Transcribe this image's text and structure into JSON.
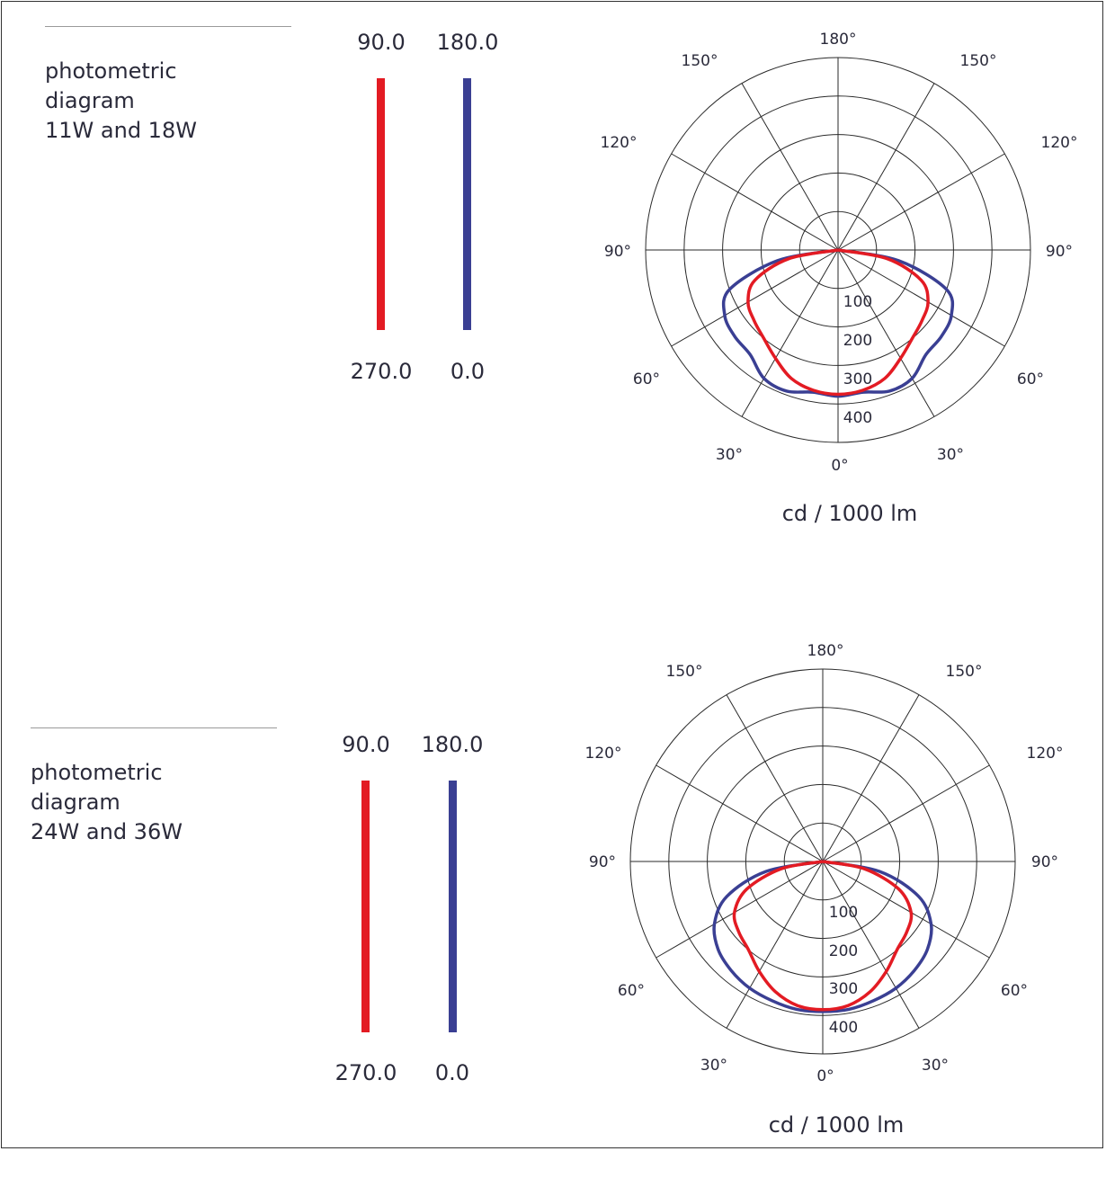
{
  "colors": {
    "red": "#e31b23",
    "blue": "#3a3f93"
  },
  "diagrams": [
    {
      "title_lines": [
        "photometric",
        "diagram",
        "11W and 18W"
      ],
      "legend": {
        "red_top": "90.0",
        "red_bottom": "270.0",
        "blue_top": "180.0",
        "blue_bottom": "0.0"
      },
      "unit_label": "cd / 1000 lm",
      "angle_labels": {
        "a180": "180°",
        "a150l": "150°",
        "a150r": "150°",
        "a120l": "120°",
        "a120r": "120°",
        "a90l": "90°",
        "a90r": "90°",
        "a60l": "60°",
        "a60r": "60°",
        "a30l": "30°",
        "a30r": "30°",
        "a0": "0°"
      },
      "radial_labels": [
        "100",
        "200",
        "300",
        "400"
      ],
      "chart_data": {
        "type": "polar",
        "rmax": 500,
        "radial_ticks": [
          100,
          200,
          300,
          400
        ],
        "angle_ticks": [
          0,
          30,
          60,
          90,
          120,
          150,
          180
        ],
        "series": [
          {
            "name": "0.0",
            "color": "blue",
            "angles": [
              0,
              10,
              20,
              30,
              40,
              50,
              60,
              70,
              80,
              90
            ],
            "values": [
              380,
              375,
              390,
              385,
              355,
              350,
              340,
              300,
              160,
              0
            ]
          },
          {
            "name": "90.0",
            "color": "red",
            "angles": [
              0,
              10,
              20,
              30,
              40,
              50,
              60,
              70,
              80,
              90
            ],
            "values": [
              375,
              370,
              355,
              325,
              300,
              285,
              270,
              230,
              130,
              0
            ]
          }
        ]
      }
    },
    {
      "title_lines": [
        "photometric",
        "diagram",
        "24W and 36W"
      ],
      "legend": {
        "red_top": "90.0",
        "red_bottom": "270.0",
        "blue_top": "180.0",
        "blue_bottom": "0.0"
      },
      "unit_label": "cd / 1000 lm",
      "angle_labels": {
        "a180": "180°",
        "a150l": "150°",
        "a150r": "150°",
        "a120l": "120°",
        "a120r": "120°",
        "a90l": "90°",
        "a90r": "90°",
        "a60l": "60°",
        "a60r": "60°",
        "a30l": "30°",
        "a30r": "30°",
        "a0": "0°"
      },
      "radial_labels": [
        "100",
        "200",
        "300",
        "400"
      ],
      "chart_data": {
        "type": "polar",
        "rmax": 500,
        "radial_ticks": [
          100,
          200,
          300,
          400
        ],
        "angle_ticks": [
          0,
          30,
          60,
          90,
          120,
          150,
          180
        ],
        "series": [
          {
            "name": "0.0",
            "color": "blue",
            "angles": [
              0,
              10,
              20,
              30,
              40,
              50,
              60,
              70,
              80,
              90
            ],
            "values": [
              390,
              390,
              385,
              380,
              370,
              355,
              325,
              265,
              150,
              0
            ]
          },
          {
            "name": "90.0",
            "color": "red",
            "angles": [
              0,
              10,
              20,
              30,
              40,
              50,
              60,
              70,
              80,
              90
            ],
            "values": [
              385,
              380,
              360,
              330,
              300,
              285,
              265,
              210,
              110,
              0
            ]
          }
        ]
      }
    }
  ]
}
